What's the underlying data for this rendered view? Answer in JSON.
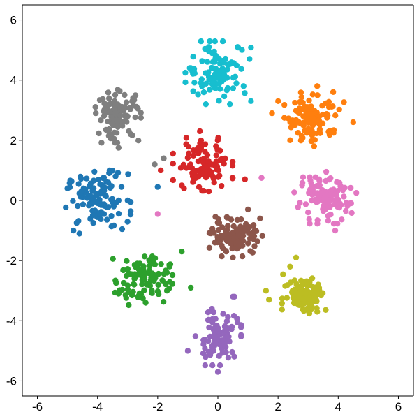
{
  "chart_data": {
    "type": "scatter",
    "title": "",
    "xlabel": "",
    "ylabel": "",
    "xlim": [
      -6.5,
      6.5
    ],
    "ylim": [
      -6.5,
      6.5
    ],
    "x_ticks": [
      -6,
      -4,
      -2,
      0,
      2,
      4,
      6
    ],
    "y_ticks": [
      -6,
      -4,
      -2,
      0,
      2,
      4,
      6
    ],
    "grid": false,
    "legend": "none",
    "series": [
      {
        "color": "#1f77b4",
        "center": [
          -4.0,
          0.0
        ],
        "spread": [
          0.5,
          0.45
        ],
        "count": 100,
        "points": [
          [
            -3.6,
            1.0
          ],
          [
            -3.4,
            0.8
          ],
          [
            -5.0,
            0.4
          ],
          [
            -4.8,
            -1.0
          ],
          [
            -4.6,
            -1.1
          ],
          [
            -3.3,
            0.0
          ],
          [
            -3.0,
            0.0
          ]
        ]
      },
      {
        "color": "#ff7f0e",
        "center": [
          3.2,
          2.8
        ],
        "spread": [
          0.45,
          0.4
        ],
        "count": 100,
        "points": [
          [
            3.3,
            3.8
          ],
          [
            2.0,
            3.3
          ],
          [
            1.8,
            2.9
          ],
          [
            4.5,
            2.6
          ],
          [
            2.4,
            2.0
          ],
          [
            3.2,
            1.8
          ]
        ]
      },
      {
        "color": "#2ca02c",
        "center": [
          -2.5,
          -2.6
        ],
        "spread": [
          0.45,
          0.4
        ],
        "count": 100,
        "points": [
          [
            -1.2,
            -1.7
          ],
          [
            -3.3,
            -3.1
          ],
          [
            -0.9,
            -2.9
          ],
          [
            -2.4,
            -3.4
          ]
        ]
      },
      {
        "color": "#d62728",
        "center": [
          -0.5,
          1.2
        ],
        "spread": [
          0.45,
          0.4
        ],
        "count": 100,
        "points": [
          [
            -0.6,
            2.3
          ],
          [
            -1.9,
            1.0
          ],
          [
            0.9,
            0.7
          ],
          [
            -0.3,
            0.3
          ],
          [
            -1.2,
            0.5
          ]
        ]
      },
      {
        "color": "#9467bd",
        "center": [
          0.0,
          -4.6
        ],
        "spread": [
          0.35,
          0.4
        ],
        "count": 100,
        "points": [
          [
            -1.0,
            -5.0
          ],
          [
            0.0,
            -5.7
          ],
          [
            0.5,
            -3.2
          ],
          [
            -0.2,
            -3.6
          ]
        ]
      },
      {
        "color": "#8c564b",
        "center": [
          0.6,
          -1.2
        ],
        "spread": [
          0.4,
          0.3
        ],
        "count": 100,
        "points": [
          [
            1.0,
            -0.3
          ],
          [
            -0.1,
            -1.4
          ],
          [
            1.4,
            -0.6
          ],
          [
            0.5,
            -1.9
          ]
        ]
      },
      {
        "color": "#e377c2",
        "center": [
          3.5,
          0.0
        ],
        "spread": [
          0.45,
          0.35
        ],
        "count": 100,
        "points": [
          [
            1.45,
            0.75
          ],
          [
            3.6,
            0.95
          ],
          [
            4.6,
            0.25
          ],
          [
            2.8,
            0.5
          ],
          [
            3.9,
            -1.0
          ]
        ]
      },
      {
        "color": "#7f7f7f",
        "center": [
          -3.3,
          2.8
        ],
        "spread": [
          0.35,
          0.4
        ],
        "count": 100,
        "points": [
          [
            -1.8,
            1.4
          ],
          [
            -2.1,
            1.2
          ],
          [
            -3.3,
            1.75
          ],
          [
            -3.6,
            3.2
          ]
        ]
      },
      {
        "color": "#bcbd22",
        "center": [
          2.9,
          -3.1
        ],
        "spread": [
          0.35,
          0.3
        ],
        "count": 100,
        "points": [
          [
            2.6,
            -1.9
          ],
          [
            1.6,
            -3.0
          ],
          [
            1.7,
            -3.3
          ],
          [
            2.4,
            -2.2
          ],
          [
            3.3,
            -3.7
          ]
        ]
      },
      {
        "color": "#17becf",
        "center": [
          0.0,
          4.3
        ],
        "spread": [
          0.5,
          0.45
        ],
        "count": 100,
        "points": [
          [
            -0.9,
            4.4
          ],
          [
            1.1,
            3.3
          ],
          [
            -0.3,
            5.1
          ],
          [
            0.8,
            5.0
          ],
          [
            -0.4,
            3.2
          ],
          [
            0.4,
            3.2
          ]
        ]
      }
    ],
    "extra_points": [
      {
        "color": "#e377c2",
        "x": 1.45,
        "y": 0.75
      },
      {
        "color": "#d62728",
        "x": -1.9,
        "y": 1.0
      },
      {
        "color": "#1f77b4",
        "x": -2.0,
        "y": 0.45
      },
      {
        "color": "#e377c2",
        "x": -2.0,
        "y": -0.45
      },
      {
        "color": "#9467bd",
        "x": 0.55,
        "y": -3.2
      }
    ]
  }
}
